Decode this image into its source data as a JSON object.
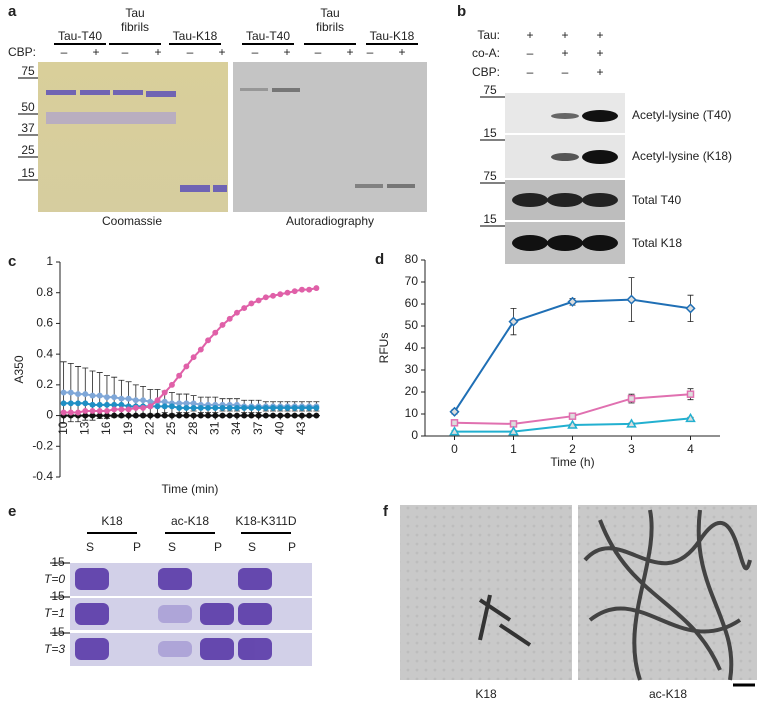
{
  "panel_a": {
    "label": "a",
    "groups": [
      "Tau-T40",
      "Tau fibrils",
      "Tau-K18",
      "Tau-T40",
      "Tau fibrils",
      "Tau-K18"
    ],
    "cbp_label": "CBP:",
    "cbp": [
      "–",
      "+",
      "–",
      "+",
      "–",
      "+",
      "–",
      "+",
      "–",
      "+",
      "–",
      "+"
    ],
    "markers": [
      "75",
      "50",
      "37",
      "25",
      "15"
    ],
    "captions": [
      "Coomassie",
      "Autoradiography"
    ]
  },
  "panel_b": {
    "label": "b",
    "rows": [
      {
        "name": "Tau:",
        "signs": [
          "+",
          "+",
          "+"
        ]
      },
      {
        "name": "co-A:",
        "signs": [
          "–",
          "+",
          "+"
        ]
      },
      {
        "name": "CBP:",
        "signs": [
          "–",
          "–",
          "+"
        ]
      }
    ],
    "markers": [
      "75",
      "15",
      "75",
      "15"
    ],
    "blots": [
      "Acetyl-lysine (T40)",
      "Acetyl-lysine (K18)",
      "Total T40",
      "Total K18"
    ]
  },
  "chart_data": [
    {
      "type": "line",
      "label": "c",
      "ylabel": "A350",
      "xlabel": "Time (min)",
      "x": [
        10,
        11,
        12,
        13,
        14,
        15,
        16,
        17,
        18,
        19,
        20,
        21,
        22,
        23,
        24,
        25,
        26,
        27,
        28,
        29,
        30,
        31,
        32,
        33,
        34,
        35,
        36,
        37,
        38,
        39,
        40,
        41,
        42,
        43,
        44,
        45
      ],
      "xlim": [
        9.5,
        45.5
      ],
      "xticks": [
        10,
        13,
        16,
        19,
        22,
        25,
        28,
        31,
        34,
        37,
        40,
        43
      ],
      "ylim": [
        -0.4,
        1
      ],
      "yticks": [
        -0.4,
        -0.2,
        0,
        0.2,
        0.4,
        0.6,
        0.8,
        1
      ],
      "series": [
        {
          "color": "#7fa7d8",
          "marker": "circle",
          "values": [
            0.15,
            0.15,
            0.14,
            0.14,
            0.13,
            0.13,
            0.12,
            0.12,
            0.11,
            0.11,
            0.1,
            0.1,
            0.09,
            0.09,
            0.09,
            0.08,
            0.08,
            0.08,
            0.08,
            0.07,
            0.07,
            0.07,
            0.07,
            0.07,
            0.07,
            0.06,
            0.06,
            0.06,
            0.06,
            0.06,
            0.06,
            0.06,
            0.06,
            0.06,
            0.06,
            0.06
          ],
          "errors": [
            0.2,
            0.19,
            0.18,
            0.17,
            0.16,
            0.15,
            0.14,
            0.13,
            0.12,
            0.11,
            0.1,
            0.09,
            0.08,
            0.08,
            0.07,
            0.07,
            0.06,
            0.06,
            0.05,
            0.05,
            0.05,
            0.05,
            0.04,
            0.04,
            0.04,
            0.04,
            0.04,
            0.04,
            0.03,
            0.03,
            0.03,
            0.03,
            0.03,
            0.03,
            0.03,
            0.03
          ]
        },
        {
          "color": "#1f8fc4",
          "marker": "circle",
          "values": [
            0.08,
            0.08,
            0.08,
            0.08,
            0.07,
            0.07,
            0.07,
            0.07,
            0.07,
            0.06,
            0.06,
            0.06,
            0.06,
            0.06,
            0.06,
            0.06,
            0.05,
            0.05,
            0.05,
            0.05,
            0.05,
            0.05,
            0.05,
            0.05,
            0.05,
            0.05,
            0.05,
            0.05,
            0.05,
            0.05,
            0.05,
            0.05,
            0.05,
            0.05,
            0.05,
            0.05
          ]
        },
        {
          "color": "#111111",
          "marker": "circle",
          "values": [
            0,
            0,
            0,
            0,
            0,
            0,
            0,
            0,
            0,
            0,
            0,
            0,
            0,
            0,
            0,
            0,
            0,
            0,
            0,
            0,
            0,
            0,
            0,
            0,
            0,
            0,
            0,
            0,
            0,
            0,
            0,
            0,
            0,
            0,
            0,
            0
          ]
        },
        {
          "color": "#e060a8",
          "marker": "circle",
          "values": [
            0.02,
            0.02,
            0.02,
            0.03,
            0.03,
            0.03,
            0.03,
            0.04,
            0.04,
            0.04,
            0.05,
            0.05,
            0.06,
            0.1,
            0.15,
            0.2,
            0.26,
            0.32,
            0.38,
            0.43,
            0.49,
            0.54,
            0.59,
            0.63,
            0.67,
            0.7,
            0.73,
            0.75,
            0.77,
            0.78,
            0.79,
            0.8,
            0.81,
            0.82,
            0.82,
            0.83
          ]
        }
      ]
    },
    {
      "type": "line",
      "label": "d",
      "ylabel": "RFUs",
      "xlabel": "Time (h)",
      "x": [
        0,
        1,
        2,
        3,
        4
      ],
      "xlim": [
        -0.5,
        4.5
      ],
      "xticks": [
        0,
        1,
        2,
        3,
        4
      ],
      "ylim": [
        0,
        80
      ],
      "yticks": [
        0,
        10,
        20,
        30,
        40,
        50,
        60,
        70,
        80
      ],
      "series": [
        {
          "color": "#1f6fb5",
          "marker": "diamond",
          "values": [
            11,
            52,
            61,
            62,
            58
          ],
          "errors": [
            1,
            6,
            1.5,
            10,
            6
          ]
        },
        {
          "color": "#e070b0",
          "marker": "square",
          "values": [
            6,
            5.5,
            9,
            17,
            19
          ],
          "errors": [
            0.5,
            1,
            1,
            2,
            2.5
          ]
        },
        {
          "color": "#22b0d0",
          "marker": "triangle",
          "values": [
            2,
            2,
            5,
            5.5,
            8
          ],
          "errors": [
            0.3,
            0.3,
            0.4,
            0.4,
            0.5
          ]
        }
      ]
    }
  ],
  "panel_e": {
    "label": "e",
    "groups": [
      "K18",
      "ac-K18",
      "K18-K311D"
    ],
    "fractions": [
      "S",
      "P",
      "S",
      "P",
      "S",
      "P"
    ],
    "rows": [
      "T=0",
      "T=1",
      "T=3"
    ],
    "markers": [
      "15",
      "15",
      "15"
    ]
  },
  "panel_f": {
    "label": "f",
    "captions": [
      "K18",
      "ac-K18"
    ]
  }
}
